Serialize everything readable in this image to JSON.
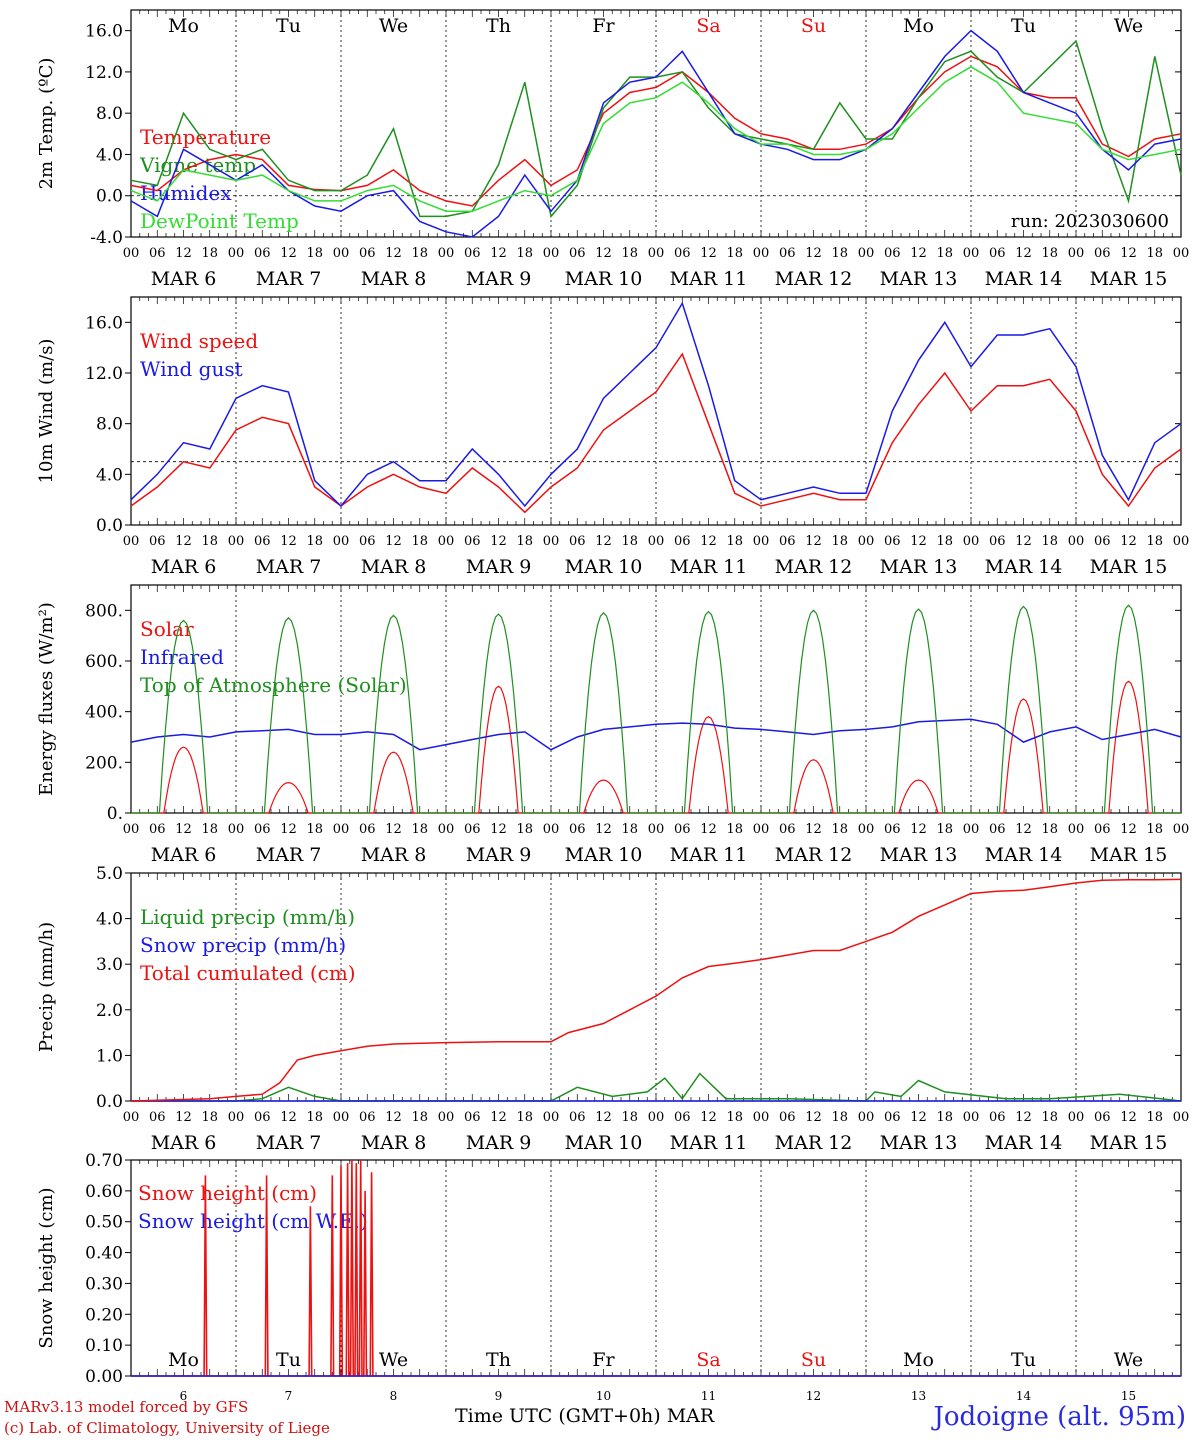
{
  "footer": {
    "model": "MARv3.13 model forced by GFS",
    "lab": "(c) Lab. of Climatology, University of Liege",
    "station": "Jodoigne (alt. 95m)",
    "xaxis_title": "Time UTC (GMT+0h) MAR"
  },
  "colors": {
    "red": "#ee1111",
    "green": "#1f8f1f",
    "blue": "#1a1ae6",
    "lightgreen": "#33dd33",
    "purple": "#7a1aa0"
  },
  "chart_data": {
    "type": "line",
    "days": [
      "Mo",
      "Tu",
      "We",
      "Th",
      "Fr",
      "Sa",
      "Su",
      "Mo",
      "Tu",
      "We"
    ],
    "weekend_days": [
      "Sa",
      "Su"
    ],
    "date_labels": [
      "MAR 6",
      "MAR 7",
      "MAR 8",
      "MAR 9",
      "MAR 10",
      "MAR 11",
      "MAR 12",
      "MAR 13",
      "MAR 14",
      "MAR 15"
    ],
    "hour_ticks": [
      "00",
      "06",
      "12",
      "18"
    ],
    "x_range_hours": [
      0,
      240
    ],
    "panels": [
      {
        "ylabel": "2m Temp. (ºC)",
        "ylim": [
          -4,
          18
        ],
        "yticks": [
          "-4.0",
          "0.0",
          "4.0",
          "8.0",
          "12.0",
          "16.0"
        ],
        "yvalues": [
          -4,
          0,
          4,
          8,
          12,
          16
        ],
        "ref_line": 0,
        "annotation": "run: 2023030600",
        "series": [
          {
            "name": "Temperature",
            "color": "red",
            "x": [
              0,
              6,
              12,
              18,
              24,
              30,
              36,
              42,
              48,
              54,
              60,
              66,
              72,
              78,
              84,
              90,
              96,
              102,
              108,
              114,
              120,
              126,
              132,
              138,
              144,
              150,
              156,
              162,
              168,
              174,
              180,
              186,
              192,
              198,
              204,
              210,
              216,
              222,
              228,
              234,
              240
            ],
            "y": [
              1.0,
              0.5,
              2.5,
              3.5,
              4.0,
              3.5,
              1.0,
              0.6,
              0.5,
              1.0,
              2.5,
              0.5,
              -0.5,
              -1.0,
              1.5,
              3.5,
              1.0,
              2.5,
              8.0,
              10.0,
              10.5,
              12.0,
              10.0,
              7.5,
              6.0,
              5.5,
              4.5,
              4.5,
              5.0,
              6.5,
              9.5,
              12.0,
              13.5,
              12.5,
              10.0,
              9.5,
              9.5,
              5.0,
              3.8,
              5.5,
              6.0
            ]
          },
          {
            "name": "Vigne temp",
            "color": "green",
            "x": [
              0,
              6,
              12,
              18,
              24,
              30,
              36,
              42,
              48,
              54,
              60,
              66,
              72,
              78,
              84,
              90,
              96,
              102,
              108,
              114,
              120,
              126,
              132,
              138,
              144,
              150,
              156,
              162,
              168,
              174,
              180,
              186,
              192,
              198,
              204,
              210,
              216,
              222,
              228,
              234,
              240
            ],
            "y": [
              1.5,
              1.0,
              8.0,
              4.5,
              3.5,
              4.5,
              1.5,
              0.5,
              0.5,
              2.0,
              6.5,
              -2.0,
              -2.0,
              -1.5,
              3.0,
              11.0,
              -2.0,
              1.0,
              8.5,
              11.5,
              11.5,
              12.0,
              8.5,
              6.0,
              5.5,
              5.0,
              4.5,
              9.0,
              5.5,
              5.5,
              9.5,
              13.0,
              14.0,
              11.5,
              10.0,
              12.5,
              15.0,
              6.5,
              -0.5,
              13.5,
              2.0
            ]
          },
          {
            "name": "Humidex",
            "color": "blue",
            "x": [
              0,
              6,
              12,
              18,
              24,
              30,
              36,
              42,
              48,
              54,
              60,
              66,
              72,
              78,
              84,
              90,
              96,
              102,
              108,
              114,
              120,
              126,
              132,
              138,
              144,
              150,
              156,
              162,
              168,
              174,
              180,
              186,
              192,
              198,
              204,
              210,
              216,
              222,
              228,
              234,
              240
            ],
            "y": [
              -0.5,
              -2.0,
              4.5,
              3.0,
              1.5,
              3.0,
              0.5,
              -1.0,
              -1.5,
              0.0,
              0.5,
              -2.5,
              -3.5,
              -4.0,
              -2.0,
              2.0,
              -1.5,
              1.5,
              9.0,
              11.0,
              11.5,
              14.0,
              10.0,
              6.0,
              5.0,
              4.5,
              3.5,
              3.5,
              4.5,
              6.5,
              10.0,
              13.5,
              16.0,
              14.0,
              10.0,
              9.0,
              8.0,
              4.5,
              2.5,
              5.0,
              5.5
            ]
          },
          {
            "name": "DewPoint Temp",
            "color": "lightgreen",
            "x": [
              0,
              6,
              12,
              18,
              24,
              30,
              36,
              42,
              48,
              54,
              60,
              66,
              72,
              78,
              84,
              90,
              96,
              102,
              108,
              114,
              120,
              126,
              132,
              138,
              144,
              150,
              156,
              162,
              168,
              174,
              180,
              186,
              192,
              198,
              204,
              210,
              216,
              222,
              228,
              234,
              240
            ],
            "y": [
              0.5,
              -0.5,
              2.5,
              2.0,
              1.5,
              2.0,
              0.5,
              -0.5,
              -0.5,
              0.5,
              1.0,
              -0.5,
              -1.5,
              -1.5,
              -0.5,
              0.5,
              0.0,
              1.5,
              7.0,
              9.0,
              9.5,
              11.0,
              9.0,
              6.5,
              5.0,
              5.0,
              4.0,
              4.0,
              4.5,
              6.0,
              8.5,
              11.0,
              12.5,
              11.0,
              8.0,
              7.5,
              7.0,
              4.5,
              3.5,
              4.0,
              4.5
            ]
          }
        ]
      },
      {
        "ylabel": "10m Wind (m/s)",
        "ylim": [
          0,
          18
        ],
        "yticks": [
          "0.0",
          "4.0",
          "8.0",
          "12.0",
          "16.0"
        ],
        "yvalues": [
          0,
          4,
          8,
          12,
          16
        ],
        "ref_line": 5,
        "series": [
          {
            "name": "Wind speed",
            "color": "red",
            "x": [
              0,
              6,
              12,
              18,
              24,
              30,
              36,
              42,
              48,
              54,
              60,
              66,
              72,
              78,
              84,
              90,
              96,
              102,
              108,
              114,
              120,
              126,
              132,
              138,
              144,
              150,
              156,
              162,
              168,
              174,
              180,
              186,
              192,
              198,
              204,
              210,
              216,
              222,
              228,
              234,
              240
            ],
            "y": [
              1.5,
              3.0,
              5.0,
              4.5,
              7.5,
              8.5,
              8.0,
              3.0,
              1.5,
              3.0,
              4.0,
              3.0,
              2.5,
              4.5,
              3.0,
              1.0,
              3.0,
              4.5,
              7.5,
              9.0,
              10.5,
              13.5,
              8.0,
              2.5,
              1.5,
              2.0,
              2.5,
              2.0,
              2.0,
              6.5,
              9.5,
              12.0,
              9.0,
              11.0,
              11.0,
              11.5,
              9.0,
              4.0,
              1.5,
              4.5,
              6.0
            ]
          },
          {
            "name": "Wind gust",
            "color": "blue",
            "x": [
              0,
              6,
              12,
              18,
              24,
              30,
              36,
              42,
              48,
              54,
              60,
              66,
              72,
              78,
              84,
              90,
              96,
              102,
              108,
              114,
              120,
              126,
              132,
              138,
              144,
              150,
              156,
              162,
              168,
              174,
              180,
              186,
              192,
              198,
              204,
              210,
              216,
              222,
              228,
              234,
              240
            ],
            "y": [
              2.0,
              4.0,
              6.5,
              6.0,
              10.0,
              11.0,
              10.5,
              3.5,
              1.5,
              4.0,
              5.0,
              3.5,
              3.5,
              6.0,
              4.0,
              1.5,
              4.0,
              6.0,
              10.0,
              12.0,
              14.0,
              17.5,
              11.0,
              3.5,
              2.0,
              2.5,
              3.0,
              2.5,
              2.5,
              9.0,
              13.0,
              16.0,
              12.5,
              15.0,
              15.0,
              15.5,
              12.5,
              5.5,
              2.0,
              6.5,
              8.0
            ]
          }
        ]
      },
      {
        "ylabel": "Energy fluxes (W/m²)",
        "ylim": [
          0,
          900
        ],
        "yticks": [
          "0.",
          "200.",
          "400.",
          "600.",
          "800."
        ],
        "yvalues": [
          0,
          200,
          400,
          600,
          800
        ],
        "series": [
          {
            "name": "Solar",
            "color": "red",
            "daily_peak": [
              260,
              120,
              240,
              500,
              130,
              380,
              210,
              130,
              450,
              520
            ],
            "peak_hour": 12,
            "half_width_hours": 4.5
          },
          {
            "name": "Infrared",
            "color": "blue",
            "x": [
              0,
              6,
              12,
              18,
              24,
              30,
              36,
              42,
              48,
              54,
              60,
              66,
              72,
              78,
              84,
              90,
              96,
              102,
              108,
              114,
              120,
              126,
              132,
              138,
              144,
              150,
              156,
              162,
              168,
              174,
              180,
              186,
              192,
              198,
              204,
              210,
              216,
              222,
              228,
              234,
              240
            ],
            "y": [
              280,
              300,
              310,
              300,
              320,
              325,
              330,
              310,
              310,
              320,
              310,
              250,
              270,
              290,
              310,
              320,
              250,
              300,
              330,
              340,
              350,
              355,
              350,
              335,
              330,
              320,
              310,
              325,
              330,
              340,
              360,
              365,
              370,
              350,
              280,
              320,
              340,
              290,
              310,
              330,
              300
            ]
          },
          {
            "name": "Top of Atmosphere (Solar)",
            "color": "green",
            "daily_peak": [
              760,
              770,
              780,
              785,
              790,
              795,
              800,
              805,
              815,
              820
            ],
            "peak_hour": 12,
            "half_width_hours": 5.5
          }
        ]
      },
      {
        "ylabel": "Precip (mm/h)",
        "ylim": [
          0,
          5
        ],
        "yticks": [
          "0.0",
          "1.0",
          "2.0",
          "3.0",
          "4.0",
          "5.0"
        ],
        "yvalues": [
          0,
          1,
          2,
          3,
          4,
          5
        ],
        "series": [
          {
            "name": "Liquid precip (mm/h)",
            "color": "green",
            "x": [
              0,
              24,
              30,
              36,
              42,
              48,
              96,
              102,
              110,
              118,
              122,
              126,
              130,
              136,
              150,
              168,
              170,
              176,
              180,
              186,
              200,
              210,
              226,
              240
            ],
            "y": [
              0,
              0,
              0.05,
              0.3,
              0.1,
              0,
              0,
              0.3,
              0.1,
              0.2,
              0.5,
              0.05,
              0.6,
              0.05,
              0.05,
              0,
              0.2,
              0.1,
              0.45,
              0.2,
              0.05,
              0.05,
              0.15,
              0
            ]
          },
          {
            "name": "Snow precip (mm/h)",
            "color": "blue",
            "x": [
              0,
              240
            ],
            "y": [
              0,
              0
            ]
          },
          {
            "name": "Total cumulated (cm)",
            "color": "red",
            "x": [
              0,
              18,
              24,
              30,
              34,
              38,
              42,
              48,
              54,
              60,
              72,
              84,
              96,
              100,
              108,
              114,
              120,
              126,
              132,
              138,
              144,
              150,
              156,
              162,
              168,
              174,
              180,
              186,
              192,
              198,
              204,
              210,
              216,
              222,
              228,
              234,
              240
            ],
            "y": [
              0,
              0.05,
              0.1,
              0.15,
              0.4,
              0.9,
              1.0,
              1.1,
              1.2,
              1.25,
              1.28,
              1.3,
              1.3,
              1.5,
              1.7,
              2.0,
              2.3,
              2.7,
              2.95,
              3.02,
              3.1,
              3.2,
              3.3,
              3.3,
              3.5,
              3.7,
              4.05,
              4.3,
              4.55,
              4.6,
              4.62,
              4.7,
              4.78,
              4.84,
              4.85,
              4.85,
              4.86
            ]
          }
        ]
      },
      {
        "ylabel": "Snow height (cm)",
        "ylim": [
          0,
          0.7
        ],
        "yticks": [
          "0.00",
          "0.10",
          "0.20",
          "0.30",
          "0.40",
          "0.50",
          "0.60",
          "0.70"
        ],
        "yvalues": [
          0,
          0.1,
          0.2,
          0.3,
          0.4,
          0.5,
          0.6,
          0.7
        ],
        "series": [
          {
            "name": "Snow height (cm)",
            "color": "red",
            "spikes_x": [
              17,
              31,
              41,
              46,
              48,
              49.5,
              50.5,
              51.5,
              52.5,
              53.5,
              55
            ],
            "spikes_y": [
              0.65,
              0.65,
              0.55,
              0.65,
              0.68,
              0.69,
              0.7,
              0.69,
              0.7,
              0.6,
              0.66
            ]
          },
          {
            "name": "Snow height (cm W.E.)",
            "color": "blue",
            "x": [
              0,
              240
            ],
            "y": [
              0,
              0
            ]
          }
        ]
      }
    ]
  }
}
